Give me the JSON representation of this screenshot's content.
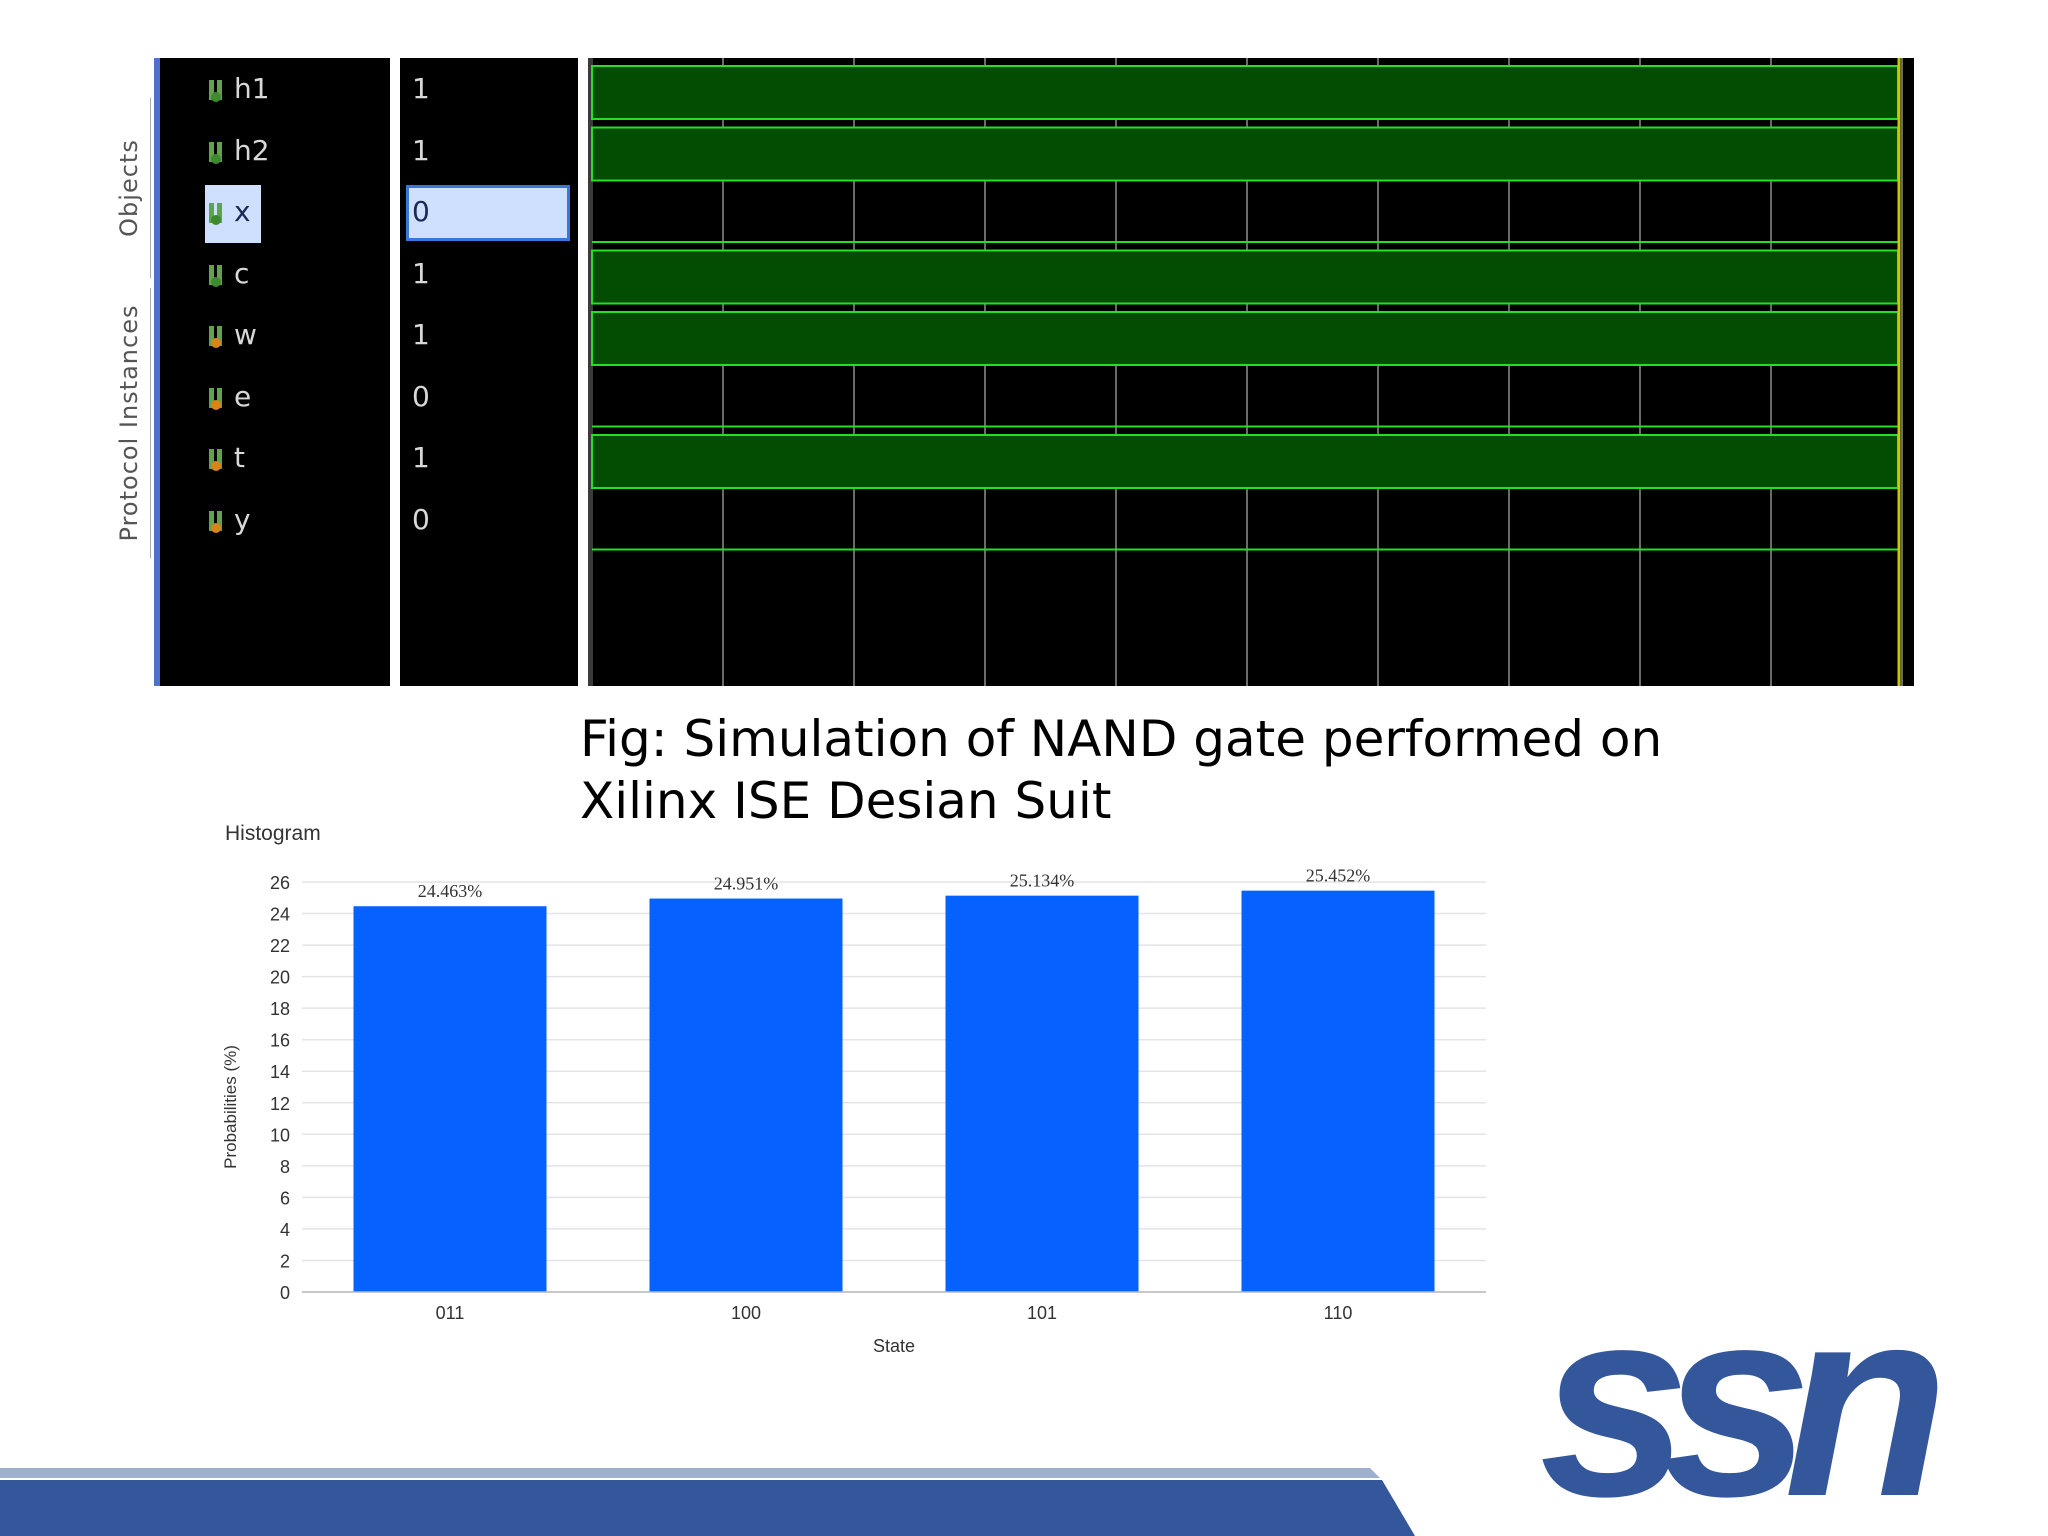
{
  "side_tabs": {
    "objects": "Objects",
    "protocol": "Protocol Instances"
  },
  "signals": [
    {
      "name": "h1",
      "value": "1",
      "type": "input",
      "selected": false
    },
    {
      "name": "h2",
      "value": "1",
      "type": "input",
      "selected": false
    },
    {
      "name": "x",
      "value": "0",
      "type": "input",
      "selected": true
    },
    {
      "name": "c",
      "value": "1",
      "type": "input",
      "selected": false
    },
    {
      "name": "w",
      "value": "1",
      "type": "output",
      "selected": false
    },
    {
      "name": "e",
      "value": "0",
      "type": "output",
      "selected": false
    },
    {
      "name": "t",
      "value": "1",
      "type": "output",
      "selected": false
    },
    {
      "name": "y",
      "value": "0",
      "type": "output",
      "selected": false
    }
  ],
  "caption": {
    "line1": "Fig: Simulation of NAND gate performed on",
    "line2": "Xilinx ISE Desian Suit"
  },
  "colors": {
    "bar": "#0561ff",
    "wave_fill": "#034d03",
    "wave_line": "#24e024",
    "logo": "#34569b",
    "footer": "#34569b"
  },
  "chart_data": {
    "type": "bar",
    "title": "Histogram",
    "xlabel": "State",
    "ylabel": "Probabilities (%)",
    "categories": [
      "011",
      "100",
      "101",
      "110"
    ],
    "values": [
      24.463,
      24.951,
      25.134,
      25.452
    ],
    "data_labels": [
      "24.463%",
      "24.951%",
      "25.134%",
      "25.452%"
    ],
    "ylim": [
      0,
      26
    ],
    "yticks": [
      0,
      2,
      4,
      6,
      8,
      10,
      12,
      14,
      16,
      18,
      20,
      22,
      24,
      26
    ],
    "grid": true
  },
  "logo": {
    "text": "ssn"
  }
}
